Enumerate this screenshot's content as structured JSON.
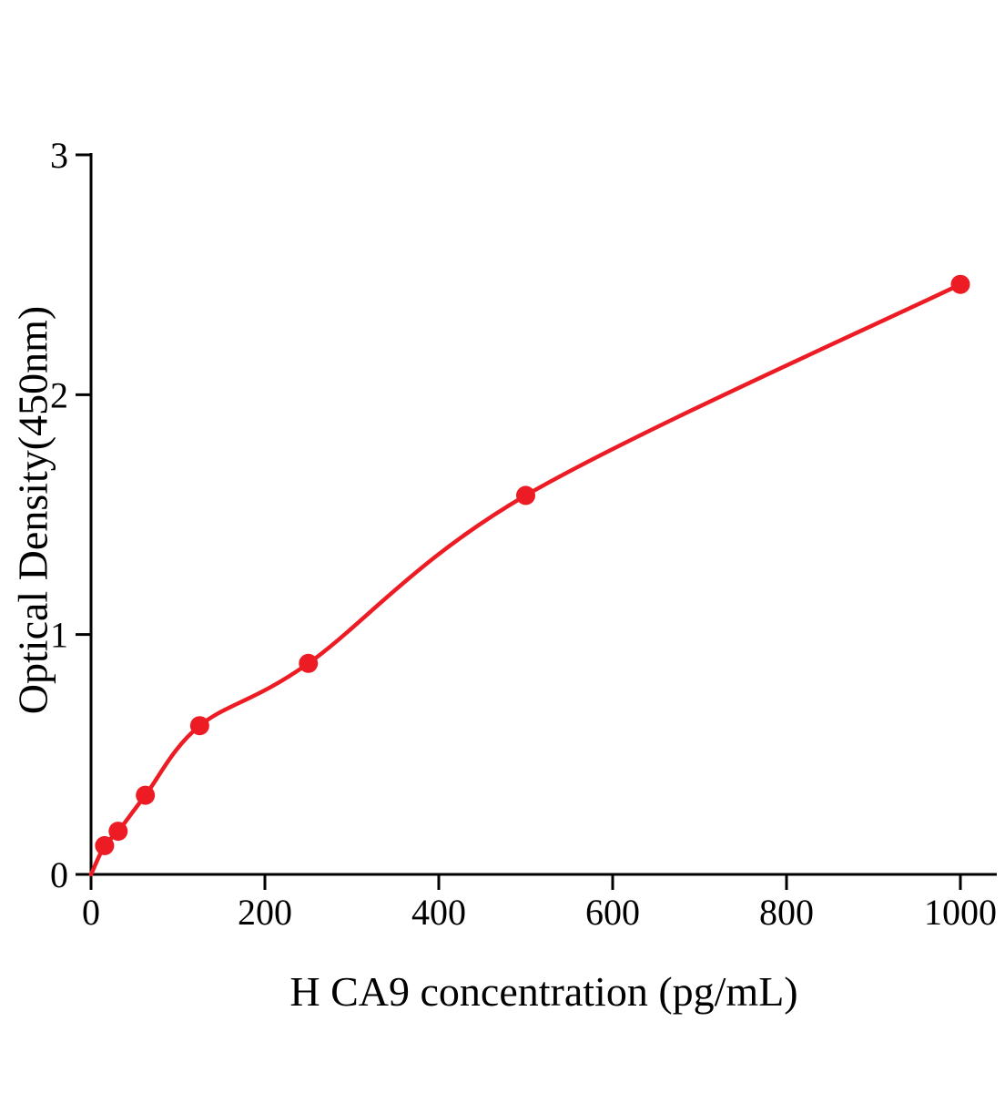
{
  "chart_data": {
    "type": "scatter",
    "title": "",
    "xlabel": "H CA9 concentration (pg/mL)",
    "ylabel": "Optical Density(450nm)",
    "x": [
      15.6,
      31.2,
      62.5,
      125,
      250,
      500,
      1000
    ],
    "y": [
      0.12,
      0.18,
      0.33,
      0.62,
      0.88,
      1.58,
      2.46
    ],
    "curve_through_origin": true,
    "xlim": [
      0,
      1000
    ],
    "ylim": [
      0,
      3
    ],
    "x_ticks": [
      0,
      200,
      400,
      600,
      800,
      1000
    ],
    "y_ticks": [
      0,
      1,
      2,
      3
    ],
    "grid": false,
    "legend": "none",
    "point_color": "#ed1c24",
    "line_color": "#ed1c24",
    "axis_color": "#000000"
  }
}
